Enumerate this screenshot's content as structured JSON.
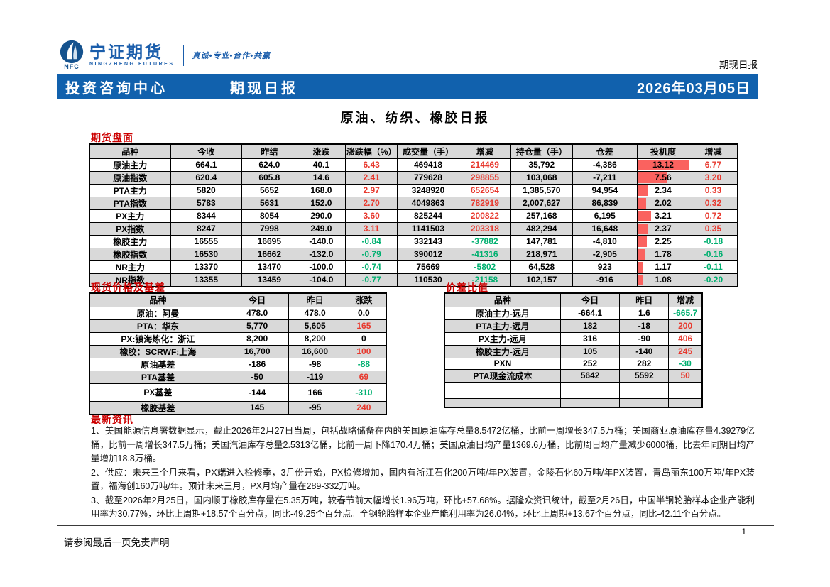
{
  "header": {
    "logo": {
      "nfc": "NFC",
      "brand": "宁证期货",
      "brand_en": "NINGZHENG FUTURES",
      "tagline": "真诚•专业•合作•共赢"
    },
    "doc_type": "期现日报"
  },
  "banner": {
    "left": "投资咨询中心",
    "center": "期现日报",
    "date": "2026年03月05日"
  },
  "title": "原油、纺织、橡胶日报",
  "colors": {
    "banner_blue": "#1161ad",
    "brand_blue": "#1a5dab",
    "section_red": "#cc0000",
    "up_red": "#e8382d",
    "down_green": "#00b070",
    "bar_red": "#fa625f",
    "row_alt_gray": "#d9d9d9"
  },
  "futures": {
    "section_title": "期货盘面",
    "headers": [
      "品种",
      "今收",
      "昨结",
      "涨跌",
      "涨跌幅（%）",
      "成交量（手）",
      "增减",
      "持仓量（手）",
      "仓差",
      "投机度",
      "增减"
    ],
    "rows": [
      [
        "原油主力",
        "664.1",
        "624.0",
        "40.1",
        "6.43",
        "469418",
        "214469",
        "35,792",
        "-4,386",
        "13.12",
        "6.77"
      ],
      [
        "原油指数",
        "620.4",
        "605.8",
        "14.6",
        "2.41",
        "779628",
        "298855",
        "103,068",
        "-7,211",
        "7.56",
        "3.20"
      ],
      [
        "PTA主力",
        "5820",
        "5652",
        "168.0",
        "2.97",
        "3248920",
        "652654",
        "1,385,570",
        "94,954",
        "2.34",
        "0.33"
      ],
      [
        "PTA指数",
        "5783",
        "5631",
        "152.0",
        "2.70",
        "4049863",
        "782919",
        "2,007,627",
        "86,839",
        "2.02",
        "0.32"
      ],
      [
        "PX主力",
        "8344",
        "8054",
        "290.0",
        "3.60",
        "825244",
        "200822",
        "257,168",
        "6,195",
        "3.21",
        "0.72"
      ],
      [
        "PX指数",
        "8247",
        "7998",
        "249.0",
        "3.11",
        "1141503",
        "203318",
        "482,294",
        "16,648",
        "2.37",
        "0.35"
      ],
      [
        "橡胶主力",
        "16555",
        "16695",
        "-140.0",
        "-0.84",
        "332143",
        "-37882",
        "147,781",
        "-4,810",
        "2.25",
        "-0.18"
      ],
      [
        "橡胶指数",
        "16530",
        "16662",
        "-132.0",
        "-0.79",
        "390012",
        "-41316",
        "218,971",
        "-2,905",
        "1.78",
        "-0.16"
      ],
      [
        "NR主力",
        "13370",
        "13470",
        "-100.0",
        "-0.74",
        "75669",
        "-5802",
        "64,528",
        "923",
        "1.17",
        "-0.11"
      ],
      [
        "NR指数",
        "13355",
        "13459",
        "-104.0",
        "-0.77",
        "110530",
        "-21158",
        "102,157",
        "-916",
        "1.08",
        "-0.20"
      ]
    ]
  },
  "spot": {
    "section_title": "现货价格及基差",
    "headers": [
      "品种",
      "今日",
      "昨日",
      "涨跌"
    ],
    "rows": [
      [
        "原油：阿曼",
        "478.0",
        "478.0",
        "0.0"
      ],
      [
        "PTA：华东",
        "5,770",
        "5,605",
        "165"
      ],
      [
        "PX:镇海炼化：浙江",
        "8,200",
        "8,200",
        "0"
      ],
      [
        "橡胶：SCRWF:上海",
        "16,700",
        "16,600",
        "100"
      ],
      [
        "原油基差",
        "-186",
        "-98",
        "-88"
      ],
      [
        "PTA基差",
        "-50",
        "-119",
        "69"
      ],
      [
        "PX基差",
        "-144",
        "166",
        "-310"
      ],
      [
        "橡胶基差",
        "145",
        "-95",
        "240"
      ]
    ]
  },
  "ratio": {
    "section_title": "价差比值",
    "headers": [
      "品种",
      "今日",
      "昨日",
      "增减"
    ],
    "rows": [
      [
        "原油主力-远月",
        "-664.1",
        "1.6",
        "-665.7"
      ],
      [
        "PTA主力-远月",
        "182",
        "-18",
        "200"
      ],
      [
        "PX主力-远月",
        "316",
        "-90",
        "406"
      ],
      [
        "橡胶主力-远月",
        "105",
        "-140",
        "245"
      ],
      [
        "PXN",
        "252",
        "282",
        "-30"
      ],
      [
        "PTA现金流成本",
        "5642",
        "5592",
        "50"
      ],
      [
        "",
        "",
        "",
        ""
      ],
      [
        "",
        "",
        "",
        ""
      ]
    ]
  },
  "news": {
    "section_title": "最新资讯",
    "paragraphs": [
      "1、美国能源信息署数据显示，截止2026年2月27日当周，包括战略储备在内的美国原油库存总量8.5472亿桶，比前一周增长347.5万桶；美国商业原油库存量4.39279亿桶，比前一周增长347.5万桶；美国汽油库存总量2.5313亿桶，比前一周下降170.4万桶；美国原油日均产量1369.6万桶，比前周日均产量减少6000桶，比去年同期日均产量增加18.8万桶。",
      "2、供应：未来三个月来看，PX端进入检修季，3月份开始，PX检修增加，国内有浙江石化200万吨/年PX装置，金陵石化60万吨/年PX装置，青岛丽东100万吨/年PX装置，福海创160万吨/年。预计未来三月，PX月均产量在289-332万吨。",
      "3、截至2026年2月25日，国内顺丁橡胶库存量在5.35万吨，较春节前大幅增长1.96万吨，环比+57.68%。据隆众资讯统计，截至2月26日，中国半钢轮胎样本企业产能利用率为30.77%，环比上周期+18.57个百分点，同比-49.25个百分点。全钢轮胎样本企业产能利用率为26.04%，环比上周期+13.67个百分点，同比-42.11个百分点。"
    ]
  },
  "footer": {
    "disclaimer": "请参阅最后一页免责声明",
    "page": "1"
  }
}
